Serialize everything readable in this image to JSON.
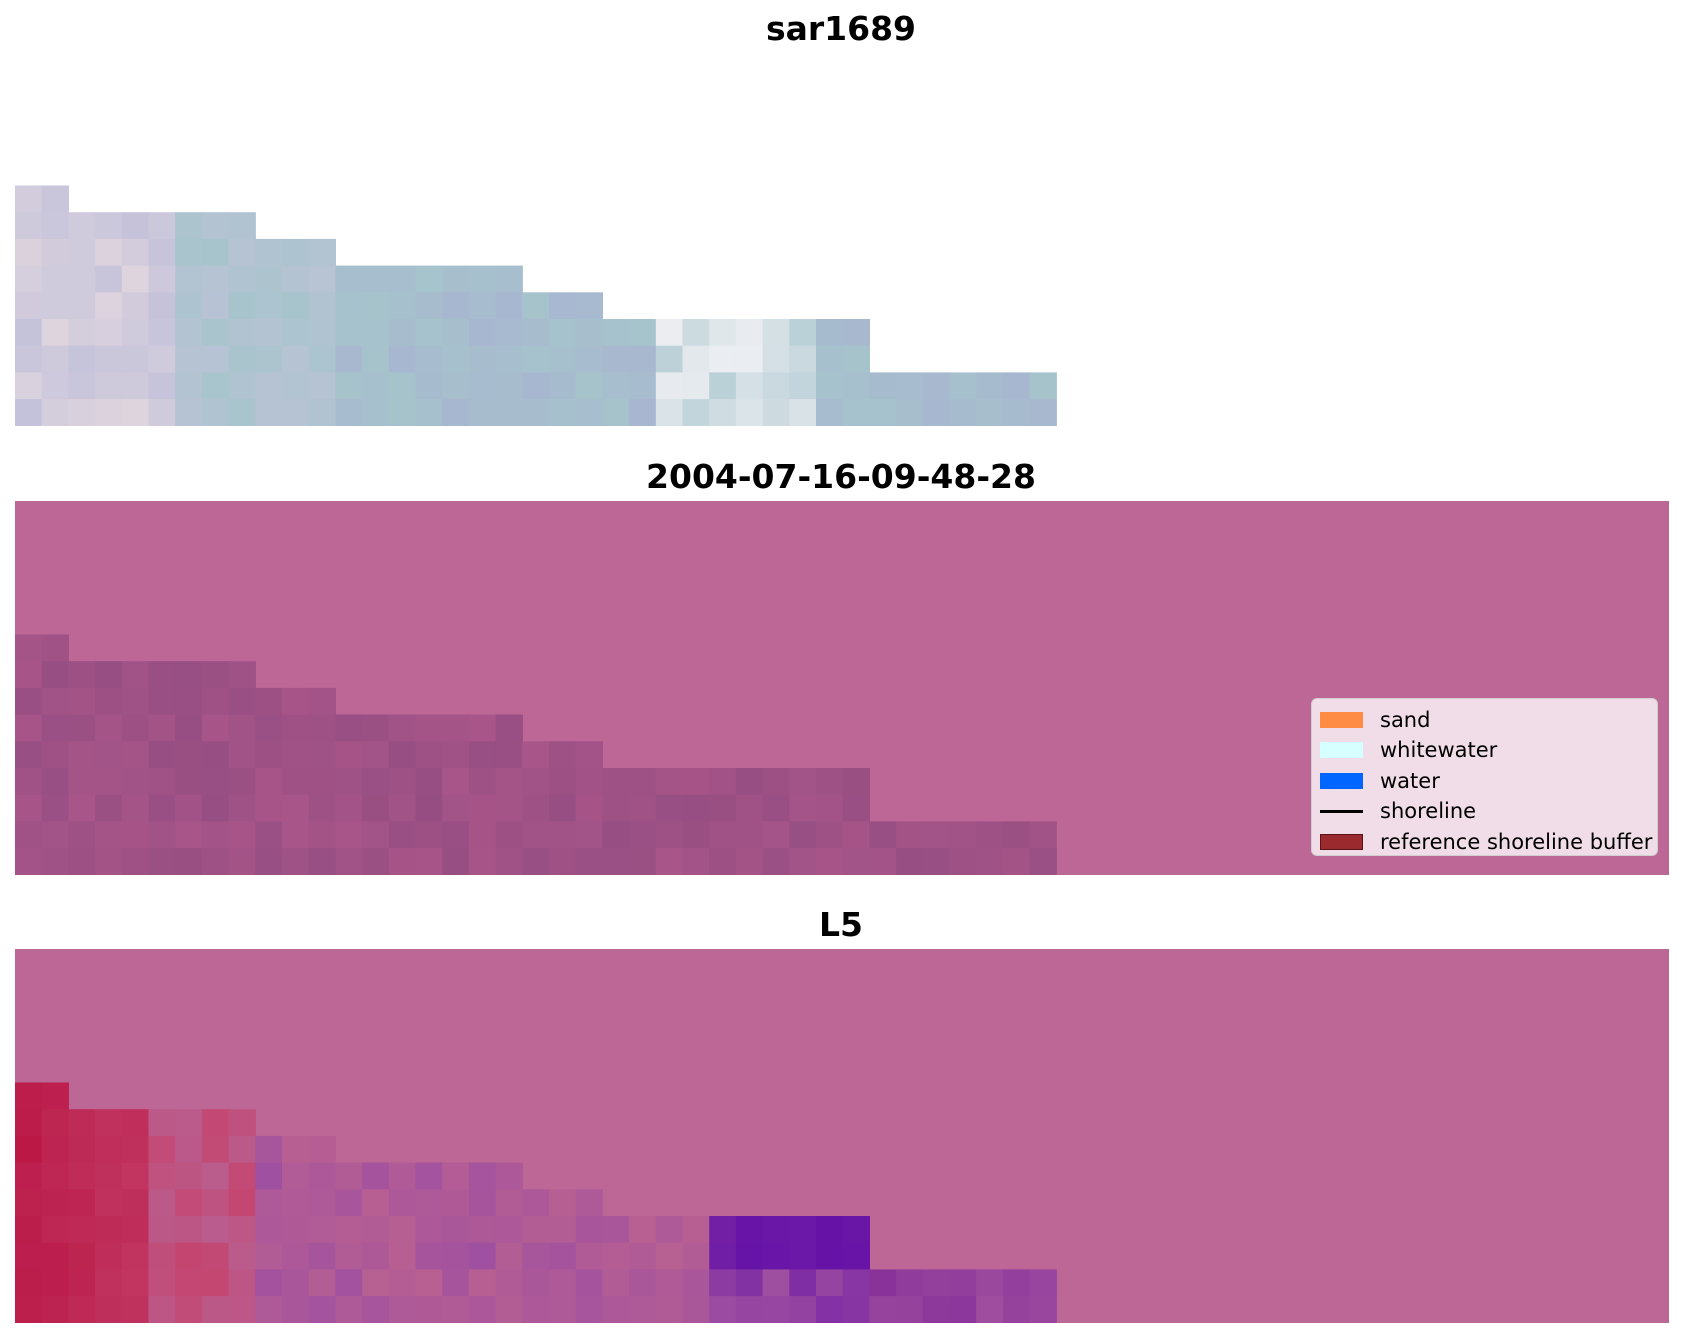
{
  "panels": [
    {
      "title": "sar1689"
    },
    {
      "title": "2004-07-16-09-48-28"
    },
    {
      "title": "L5"
    }
  ],
  "legend": {
    "items": [
      {
        "label": "sand",
        "color": "#ff8c42",
        "kind": "patch"
      },
      {
        "label": "whitewater",
        "color": "#d6ffff",
        "kind": "patch"
      },
      {
        "label": "water",
        "color": "#0066ff",
        "kind": "patch"
      },
      {
        "label": "shoreline",
        "color": "#000000",
        "kind": "line"
      },
      {
        "label": "reference shoreline buffer",
        "color": "#9b2a2f",
        "kind": "patch"
      }
    ]
  },
  "colors": {
    "overlay_magenta": "#bc6795",
    "overlay_dark": "#9a4f86",
    "rgb_gray_blue": "#a9bfcc",
    "classified_red": "#bb1f4b",
    "classified_violet": "#5a0ca8"
  }
}
